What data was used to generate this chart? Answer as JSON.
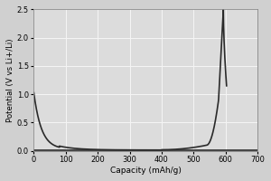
{
  "title": "",
  "xlabel": "Capacity (mAh/g)",
  "ylabel": "Potential (V vs Li+/Li)",
  "xlim": [
    0,
    700
  ],
  "ylim": [
    0,
    2.5
  ],
  "xticks": [
    0,
    100,
    200,
    300,
    400,
    500,
    600,
    700
  ],
  "yticks": [
    0,
    0.5,
    1.0,
    1.5,
    2.0,
    2.5
  ],
  "line_color": "#2a2a2a",
  "line_width": 1.2,
  "background_color": "#dcdcdc",
  "figure_bg": "#d0d0d0",
  "grid_color": "#f5f5f5",
  "grid_linewidth": 0.7
}
